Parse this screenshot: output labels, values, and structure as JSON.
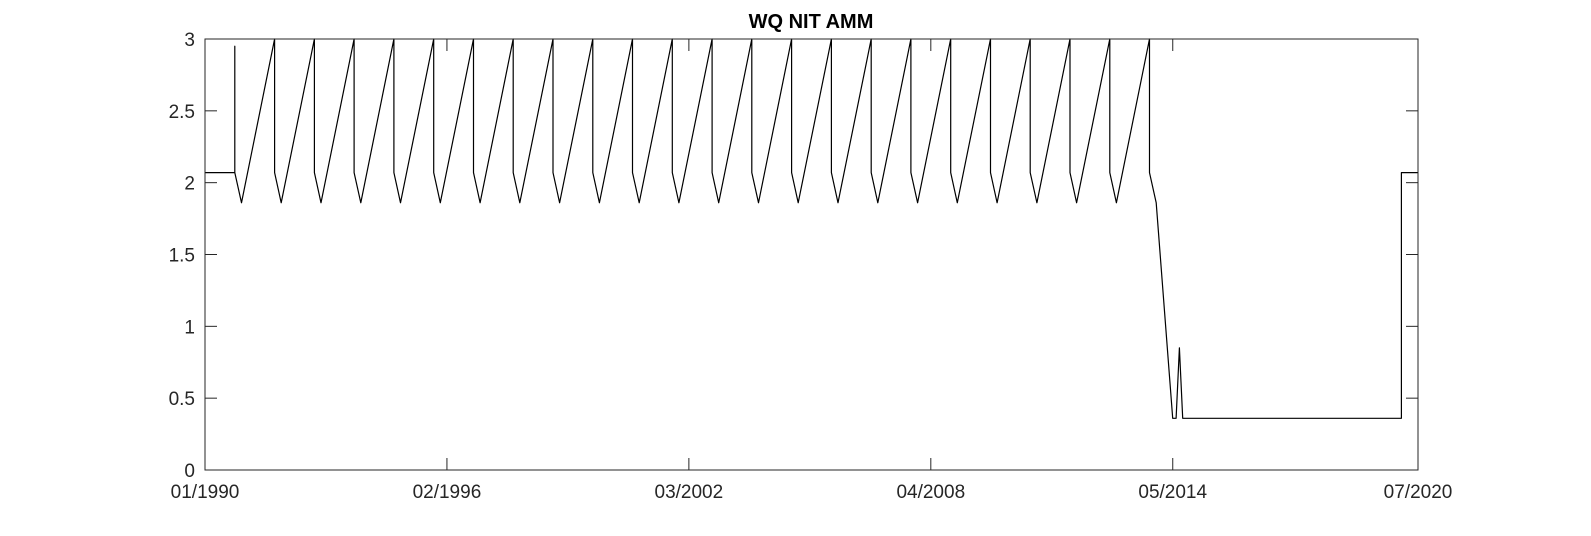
{
  "chart_data": {
    "type": "line",
    "title": "WQ NIT AMM",
    "xlabel": "",
    "ylabel": "",
    "x_ticks": [
      "01/1990",
      "02/1996",
      "03/2002",
      "04/2008",
      "05/2014",
      "07/2020"
    ],
    "y_ticks": [
      "0",
      "0.5",
      "1",
      "1.5",
      "2",
      "2.5",
      "3"
    ],
    "xlim": [
      "1990-01",
      "2020-07"
    ],
    "ylim": [
      0,
      3
    ],
    "grid": false,
    "line_color": "#000000",
    "series": [
      {
        "x": [
          "1990-01",
          "1990-10",
          "1990-10",
          "1990-10",
          "1990-12",
          "1991-10",
          "1991-10",
          "1991-12",
          "1992-10",
          "1992-10",
          "1992-12",
          "1993-10",
          "1993-10",
          "1993-12",
          "1994-10",
          "1994-10",
          "1994-12",
          "1995-10",
          "1995-10",
          "1995-12",
          "1996-10",
          "1996-10",
          "1996-12",
          "1997-10",
          "1997-10",
          "1997-12",
          "1998-10",
          "1998-10",
          "1998-12",
          "1999-10",
          "1999-10",
          "1999-12",
          "2000-10",
          "2000-10",
          "2000-12",
          "2001-10",
          "2001-10",
          "2001-12",
          "2002-10",
          "2002-10",
          "2002-12",
          "2003-10",
          "2003-10",
          "2003-12",
          "2004-10",
          "2004-10",
          "2004-12",
          "2005-10",
          "2005-10",
          "2005-12",
          "2006-10",
          "2006-10",
          "2006-12",
          "2007-10",
          "2007-10",
          "2007-12",
          "2008-10",
          "2008-10",
          "2008-12",
          "2009-10",
          "2009-10",
          "2009-12",
          "2010-10",
          "2010-10",
          "2010-12",
          "2011-10",
          "2011-10",
          "2011-12",
          "2012-10",
          "2012-10",
          "2012-12",
          "2013-10",
          "2013-10",
          "2013-12",
          "2014-05",
          "2014-06",
          "2014-07",
          "2014-08",
          "2014-09",
          "2020-02",
          "2020-02",
          "2020-07"
        ],
        "y": [
          2.07,
          2.07,
          2.95,
          2.07,
          1.86,
          3.0,
          2.07,
          1.86,
          3.0,
          2.07,
          1.86,
          3.0,
          2.07,
          1.86,
          3.0,
          2.07,
          1.86,
          3.0,
          2.07,
          1.86,
          3.0,
          2.07,
          1.86,
          3.0,
          2.07,
          1.86,
          3.0,
          2.07,
          1.86,
          3.0,
          2.07,
          1.86,
          3.0,
          2.07,
          1.86,
          3.0,
          2.07,
          1.86,
          3.0,
          2.07,
          1.86,
          3.0,
          2.07,
          1.86,
          3.0,
          2.07,
          1.86,
          3.0,
          2.07,
          1.86,
          3.0,
          2.07,
          1.86,
          3.0,
          2.07,
          1.86,
          3.0,
          2.07,
          1.86,
          3.0,
          2.07,
          1.86,
          3.0,
          2.07,
          1.86,
          3.0,
          2.07,
          1.86,
          3.0,
          2.07,
          1.86,
          3.0,
          2.07,
          1.86,
          0.36,
          0.36,
          0.85,
          0.36,
          0.36,
          0.36,
          2.07,
          2.07
        ]
      }
    ]
  }
}
